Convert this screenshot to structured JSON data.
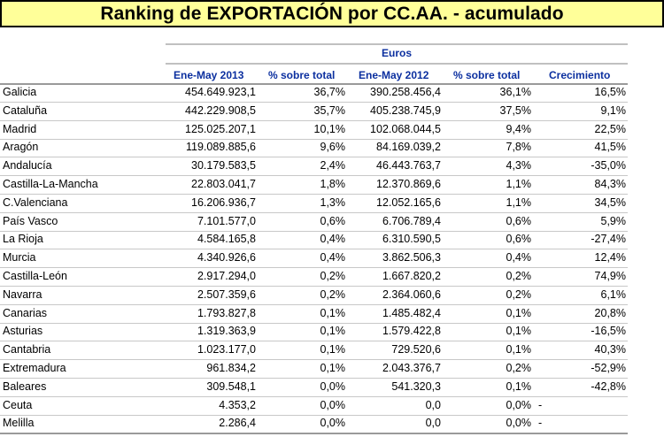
{
  "title": "Ranking de EXPORTACIÓN por CC.AA. - acumulado",
  "group_header": "Euros",
  "columns": [
    "Ene-May 2013",
    "% sobre total",
    "Ene-May 2012",
    "% sobre total",
    "Crecimiento"
  ],
  "rows": [
    {
      "region": "Galicia",
      "v2013": "454.649.923,1",
      "p2013": "36,7%",
      "v2012": "390.258.456,4",
      "p2012": "36,1%",
      "growth": "16,5%"
    },
    {
      "region": "Cataluña",
      "v2013": "442.229.908,5",
      "p2013": "35,7%",
      "v2012": "405.238.745,9",
      "p2012": "37,5%",
      "growth": "9,1%"
    },
    {
      "region": "Madrid",
      "v2013": "125.025.207,1",
      "p2013": "10,1%",
      "v2012": "102.068.044,5",
      "p2012": "9,4%",
      "growth": "22,5%"
    },
    {
      "region": "Aragón",
      "v2013": "119.089.885,6",
      "p2013": "9,6%",
      "v2012": "84.169.039,2",
      "p2012": "7,8%",
      "growth": "41,5%"
    },
    {
      "region": "Andalucía",
      "v2013": "30.179.583,5",
      "p2013": "2,4%",
      "v2012": "46.443.763,7",
      "p2012": "4,3%",
      "growth": "-35,0%"
    },
    {
      "region": "Castilla-La-Mancha",
      "v2013": "22.803.041,7",
      "p2013": "1,8%",
      "v2012": "12.370.869,6",
      "p2012": "1,1%",
      "growth": "84,3%"
    },
    {
      "region": "C.Valenciana",
      "v2013": "16.206.936,7",
      "p2013": "1,3%",
      "v2012": "12.052.165,6",
      "p2012": "1,1%",
      "growth": "34,5%"
    },
    {
      "region": "País Vasco",
      "v2013": "7.101.577,0",
      "p2013": "0,6%",
      "v2012": "6.706.789,4",
      "p2012": "0,6%",
      "growth": "5,9%"
    },
    {
      "region": "La Rioja",
      "v2013": "4.584.165,8",
      "p2013": "0,4%",
      "v2012": "6.310.590,5",
      "p2012": "0,6%",
      "growth": "-27,4%"
    },
    {
      "region": "Murcia",
      "v2013": "4.340.926,6",
      "p2013": "0,4%",
      "v2012": "3.862.506,3",
      "p2012": "0,4%",
      "growth": "12,4%"
    },
    {
      "region": "Castilla-León",
      "v2013": "2.917.294,0",
      "p2013": "0,2%",
      "v2012": "1.667.820,2",
      "p2012": "0,2%",
      "growth": "74,9%"
    },
    {
      "region": "Navarra",
      "v2013": "2.507.359,6",
      "p2013": "0,2%",
      "v2012": "2.364.060,6",
      "p2012": "0,2%",
      "growth": "6,1%"
    },
    {
      "region": "Canarias",
      "v2013": "1.793.827,8",
      "p2013": "0,1%",
      "v2012": "1.485.482,4",
      "p2012": "0,1%",
      "growth": "20,8%"
    },
    {
      "region": "Asturias",
      "v2013": "1.319.363,9",
      "p2013": "0,1%",
      "v2012": "1.579.422,8",
      "p2012": "0,1%",
      "growth": "-16,5%"
    },
    {
      "region": "Cantabria",
      "v2013": "1.023.177,0",
      "p2013": "0,1%",
      "v2012": "729.520,6",
      "p2012": "0,1%",
      "growth": "40,3%"
    },
    {
      "region": "Extremadura",
      "v2013": "961.834,2",
      "p2013": "0,1%",
      "v2012": "2.043.376,7",
      "p2012": "0,2%",
      "growth": "-52,9%"
    },
    {
      "region": "Baleares",
      "v2013": "309.548,1",
      "p2013": "0,0%",
      "v2012": "541.320,3",
      "p2012": "0,1%",
      "growth": "-42,8%"
    },
    {
      "region": "Ceuta",
      "v2013": "4.353,2",
      "p2013": "0,0%",
      "v2012": "0,0",
      "p2012": "0,0%",
      "growth": "-"
    },
    {
      "region": "Melilla",
      "v2013": "2.286,4",
      "p2013": "0,0%",
      "v2012": "0,0",
      "p2012": "0,0%",
      "growth": "-"
    }
  ]
}
